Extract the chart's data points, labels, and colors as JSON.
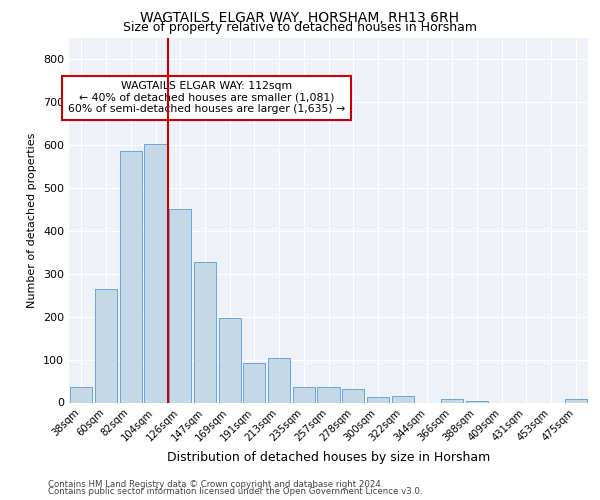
{
  "title": "WAGTAILS, ELGAR WAY, HORSHAM, RH13 6RH",
  "subtitle": "Size of property relative to detached houses in Horsham",
  "xlabel": "Distribution of detached houses by size in Horsham",
  "ylabel": "Number of detached properties",
  "categories": [
    "38sqm",
    "60sqm",
    "82sqm",
    "104sqm",
    "126sqm",
    "147sqm",
    "169sqm",
    "191sqm",
    "213sqm",
    "235sqm",
    "257sqm",
    "278sqm",
    "300sqm",
    "322sqm",
    "344sqm",
    "366sqm",
    "388sqm",
    "409sqm",
    "431sqm",
    "453sqm",
    "475sqm"
  ],
  "values": [
    37,
    265,
    585,
    603,
    450,
    328,
    196,
    91,
    103,
    37,
    35,
    31,
    13,
    14,
    0,
    8,
    4,
    0,
    0,
    0,
    9
  ],
  "bar_color": "#c5d8e8",
  "bar_edge_color": "#5b9bd5",
  "vline_x": 4.0,
  "vline_color": "#cc0000",
  "annotation_text": "WAGTAILS ELGAR WAY: 112sqm\n← 40% of detached houses are smaller (1,081)\n60% of semi-detached houses are larger (1,635) →",
  "annotation_box_color": "#ffffff",
  "annotation_box_edge_color": "#cc0000",
  "ylim": [
    0,
    850
  ],
  "yticks": [
    0,
    100,
    200,
    300,
    400,
    500,
    600,
    700,
    800
  ],
  "background_color": "#eef2f8",
  "grid_color": "#ffffff",
  "footer_line1": "Contains HM Land Registry data © Crown copyright and database right 2024.",
  "footer_line2": "Contains public sector information licensed under the Open Government Licence v3.0."
}
